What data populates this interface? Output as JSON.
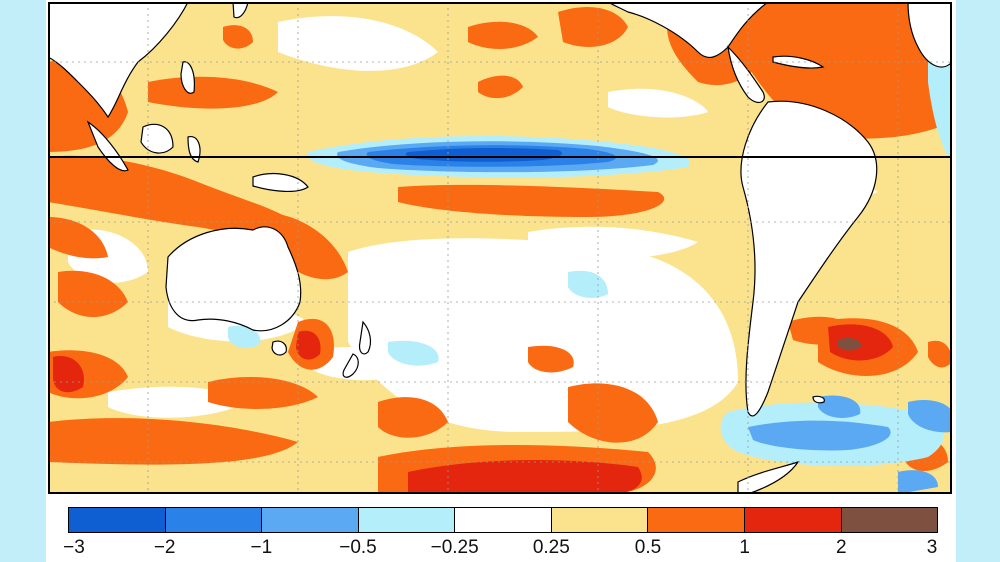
{
  "legend": {
    "colors": [
      "#0f5fd2",
      "#2a82e8",
      "#5aa9f2",
      "#b5eefb",
      "#ffffff",
      "#fbe38d",
      "#fa6a12",
      "#e3260d",
      "#7e5040"
    ],
    "ticks": [
      "−3",
      "−2",
      "−1",
      "−0.5",
      "−0.25",
      "0.25",
      "0.5",
      "1",
      "2",
      "3"
    ]
  },
  "map": {
    "palette": {
      "land": "#ffffff",
      "warm_light": "#fbe38d",
      "warm": "#fa6a12",
      "hot": "#e3260d",
      "extreme": "#7e5040",
      "cool_faint": "#b5eefb",
      "cool_light": "#5aa9f2",
      "cool": "#2a82e8",
      "cold": "#0f5fd2"
    }
  }
}
